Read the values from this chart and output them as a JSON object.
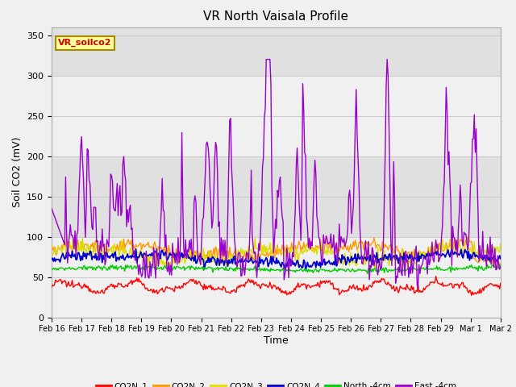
{
  "title": "VR North Vaisala Profile",
  "xlabel": "Time",
  "ylabel": "Soil CO2 (mV)",
  "ylim": [
    0,
    360
  ],
  "yticks": [
    0,
    50,
    100,
    150,
    200,
    250,
    300,
    350
  ],
  "annotation_text": "VR_soilco2",
  "annotation_color": "#cc0000",
  "annotation_bg": "#ffff99",
  "annotation_border": "#aa8800",
  "series_colors": {
    "CO2N_1": "#ff0000",
    "CO2N_2": "#ff9900",
    "CO2N_3": "#dddd00",
    "CO2N_4": "#0000cc",
    "North -4cm": "#00cc00",
    "East -4cm": "#9900cc"
  },
  "x_tick_labels": [
    "Feb 16",
    "Feb 17",
    "Feb 18",
    "Feb 19",
    "Feb 20",
    "Feb 21",
    "Feb 22",
    "Feb 23",
    "Feb 24",
    "Feb 25",
    "Feb 26",
    "Feb 27",
    "Feb 28",
    "Feb 29",
    "Mar 1",
    "Mar 2"
  ],
  "n_points": 480,
  "fig_bg": "#f0f0f0",
  "plot_bg": "#f0f0f0",
  "band_color": "#e0e0e0",
  "grid_color": "#cccccc"
}
